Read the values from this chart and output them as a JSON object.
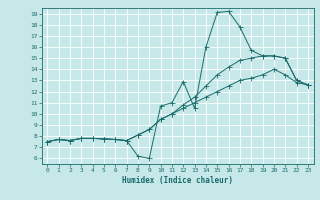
{
  "xlabel": "Humidex (Indice chaleur)",
  "bg_color": "#c6e8e8",
  "grid_color": "#ffffff",
  "line_color": "#1a6b6b",
  "xlim": [
    -0.5,
    23.5
  ],
  "ylim": [
    5.5,
    19.5
  ],
  "xticks": [
    0,
    1,
    2,
    3,
    4,
    5,
    6,
    7,
    8,
    9,
    10,
    11,
    12,
    13,
    14,
    15,
    16,
    17,
    18,
    19,
    20,
    21,
    22,
    23
  ],
  "yticks": [
    6,
    7,
    8,
    9,
    10,
    11,
    12,
    13,
    14,
    15,
    16,
    17,
    18,
    19
  ],
  "line1_x": [
    0,
    1,
    2,
    3,
    4,
    5,
    6,
    7,
    8,
    9,
    10,
    11,
    12,
    13,
    14,
    15,
    16,
    17,
    18,
    19,
    20,
    21,
    22,
    23
  ],
  "line1_y": [
    7.5,
    7.7,
    7.6,
    7.8,
    7.8,
    7.75,
    7.7,
    7.6,
    6.2,
    6.0,
    10.7,
    11.0,
    12.9,
    10.5,
    16.0,
    19.1,
    19.2,
    17.8,
    15.7,
    15.2,
    15.2,
    15.0,
    13.0,
    12.6
  ],
  "line2_x": [
    0,
    1,
    2,
    3,
    4,
    5,
    6,
    7,
    8,
    9,
    10,
    11,
    12,
    13,
    14,
    15,
    16,
    17,
    18,
    19,
    20,
    21,
    22,
    23
  ],
  "line2_y": [
    7.5,
    7.7,
    7.6,
    7.8,
    7.8,
    7.75,
    7.7,
    7.6,
    8.1,
    8.6,
    9.5,
    10.0,
    10.8,
    11.5,
    12.5,
    13.5,
    14.2,
    14.8,
    15.0,
    15.2,
    15.2,
    15.0,
    13.0,
    12.6
  ],
  "line3_x": [
    0,
    1,
    2,
    3,
    4,
    5,
    6,
    7,
    8,
    9,
    10,
    11,
    12,
    13,
    14,
    15,
    16,
    17,
    18,
    19,
    20,
    21,
    22,
    23
  ],
  "line3_y": [
    7.5,
    7.7,
    7.6,
    7.8,
    7.8,
    7.75,
    7.7,
    7.6,
    8.1,
    8.6,
    9.5,
    10.0,
    10.5,
    11.0,
    11.5,
    12.0,
    12.5,
    13.0,
    13.2,
    13.5,
    14.0,
    13.5,
    12.8,
    12.6
  ]
}
